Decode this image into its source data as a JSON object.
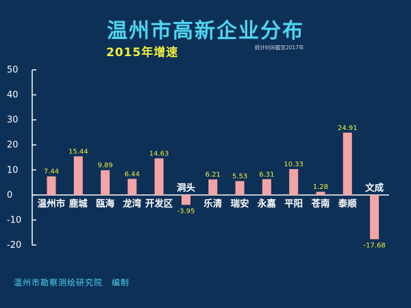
{
  "header": {
    "title": "温州市高新企业分布",
    "subtitle": "2015年增速",
    "note": "统计时间截至2017年"
  },
  "footer": {
    "credit": "温州市勘察测绘研究院　编制"
  },
  "colors": {
    "background": "#0d3057",
    "bar": "#f4a4a4",
    "axis": "#ffffff",
    "value_label": "#f0ef3c",
    "title": "#4fd4f0"
  },
  "chart_data": {
    "type": "bar",
    "title": "温州市高新企业分布",
    "subtitle": "2015年增速",
    "xlabel": "",
    "ylabel": "",
    "categories": [
      "温州市",
      "鹿城",
      "瓯海",
      "龙湾",
      "开发区",
      "洞头",
      "乐清",
      "瑞安",
      "永嘉",
      "平阳",
      "苍南",
      "泰顺",
      "文成"
    ],
    "values": [
      7.44,
      15.44,
      9.89,
      6.44,
      14.63,
      -3.95,
      6.21,
      5.53,
      6.31,
      10.33,
      1.28,
      24.91,
      -17.68
    ],
    "value_labels": [
      "7.44",
      "15.44",
      "9.89",
      "6.44",
      "14.63",
      "-3.95",
      "6.21",
      "5.53",
      "6.31",
      "10.33",
      "1.28",
      "24.91",
      "-17.68"
    ],
    "yticks": [
      "50",
      "40",
      "30",
      "20",
      "10",
      "0",
      "-10",
      "-20"
    ],
    "ytick_values": [
      50,
      40,
      30,
      20,
      10,
      0,
      -10,
      -20
    ],
    "ylim": [
      -20,
      50
    ],
    "grid": false,
    "legend": "none"
  }
}
